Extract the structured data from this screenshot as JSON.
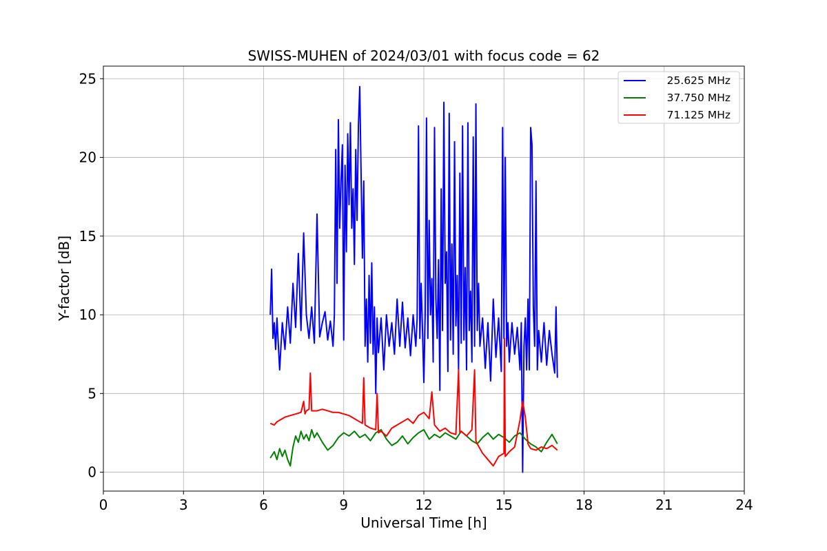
{
  "chart_data": {
    "type": "line",
    "title": "SWISS-MUHEN of 2024/03/01 with focus code = 62",
    "xlabel": "Universal Time [h]",
    "ylabel": "Y-factor [dB]",
    "xlim": [
      0,
      24
    ],
    "ylim": [
      -1.2,
      25.8
    ],
    "xticks": [
      0,
      3,
      6,
      9,
      12,
      15,
      18,
      21,
      24
    ],
    "yticks": [
      0,
      5,
      10,
      15,
      20,
      25
    ],
    "grid": true,
    "legend_position": "top-right",
    "series": [
      {
        "name": "25.625 MHz",
        "color": "#0000ff",
        "x": [
          6.25,
          6.3,
          6.35,
          6.4,
          6.45,
          6.5,
          6.6,
          6.7,
          6.8,
          6.9,
          7.0,
          7.1,
          7.2,
          7.3,
          7.4,
          7.5,
          7.6,
          7.7,
          7.8,
          7.9,
          8.0,
          8.1,
          8.2,
          8.3,
          8.4,
          8.5,
          8.6,
          8.65,
          8.7,
          8.75,
          8.8,
          8.85,
          8.9,
          8.95,
          9.0,
          9.05,
          9.1,
          9.15,
          9.2,
          9.25,
          9.3,
          9.35,
          9.4,
          9.45,
          9.5,
          9.55,
          9.6,
          9.65,
          9.7,
          9.75,
          9.8,
          9.85,
          9.9,
          9.95,
          10.0,
          10.05,
          10.1,
          10.15,
          10.2,
          10.25,
          10.3,
          10.4,
          10.5,
          10.6,
          10.7,
          10.8,
          10.9,
          11.0,
          11.1,
          11.2,
          11.3,
          11.4,
          11.5,
          11.6,
          11.7,
          11.75,
          11.8,
          11.85,
          11.9,
          11.95,
          12.0,
          12.05,
          12.1,
          12.15,
          12.2,
          12.25,
          12.3,
          12.35,
          12.4,
          12.45,
          12.5,
          12.55,
          12.6,
          12.65,
          12.7,
          12.75,
          12.8,
          12.85,
          12.9,
          12.95,
          13.0,
          13.05,
          13.1,
          13.15,
          13.2,
          13.25,
          13.3,
          13.35,
          13.4,
          13.45,
          13.5,
          13.55,
          13.6,
          13.65,
          13.7,
          13.75,
          13.8,
          13.85,
          13.9,
          13.95,
          14.0,
          14.05,
          14.1,
          14.2,
          14.3,
          14.4,
          14.5,
          14.6,
          14.7,
          14.8,
          14.9,
          14.95,
          15.0,
          15.05,
          15.1,
          15.15,
          15.2,
          15.3,
          15.4,
          15.5,
          15.6,
          15.65,
          15.7,
          15.75,
          15.8,
          15.85,
          15.9,
          15.95,
          16.0,
          16.05,
          16.1,
          16.15,
          16.2,
          16.25,
          16.3,
          16.4,
          16.5,
          16.6,
          16.7,
          16.8,
          16.9,
          16.95,
          17.0
        ],
        "y": [
          10.0,
          12.9,
          8.5,
          9.5,
          7.8,
          9.8,
          6.5,
          9.5,
          7.8,
          10.5,
          8.2,
          12.0,
          9.2,
          13.9,
          9.0,
          15.2,
          10.0,
          8.5,
          10.5,
          8.2,
          16.4,
          8.6,
          9.5,
          10.2,
          8.4,
          9.6,
          8.0,
          10.0,
          20.5,
          12.0,
          22.4,
          15.5,
          18.5,
          20.8,
          8.4,
          19.5,
          14.0,
          21.5,
          17.0,
          22.2,
          15.5,
          18.0,
          13.2,
          20.5,
          16.0,
          22.0,
          24.5,
          19.0,
          13.6,
          18.5,
          8.0,
          11.0,
          7.0,
          12.5,
          8.2,
          13.3,
          7.5,
          10.5,
          5.0,
          9.8,
          7.6,
          9.8,
          6.5,
          10.0,
          8.0,
          9.5,
          7.5,
          11.0,
          8.0,
          10.8,
          7.9,
          9.8,
          7.4,
          10.0,
          8.0,
          9.8,
          22.0,
          8.5,
          12.0,
          9.0,
          5.7,
          10.0,
          22.5,
          8.5,
          16.0,
          10.0,
          12.3,
          7.0,
          21.9,
          11.0,
          8.5,
          13.5,
          5.2,
          18.0,
          9.0,
          23.5,
          12.0,
          14.0,
          6.4,
          22.8,
          8.4,
          14.5,
          7.5,
          21.0,
          9.3,
          12.5,
          6.5,
          19.0,
          8.2,
          22.0,
          8.4,
          13.0,
          6.5,
          22.2,
          9.0,
          11.5,
          7.0,
          21.3,
          8.0,
          23.4,
          9.0,
          12.0,
          8.0,
          9.8,
          6.6,
          9.5,
          5.8,
          11.0,
          7.3,
          9.8,
          6.4,
          21.9,
          8.5,
          20.0,
          8.0,
          9.5,
          7.0,
          9.5,
          7.5,
          9.2,
          6.5,
          9.5,
          0.0,
          8.0,
          9.8,
          6.5,
          11.0,
          6.5,
          21.9,
          20.8,
          10.5,
          8.0,
          18.5,
          6.5,
          9.0,
          7.0,
          9.5,
          6.8,
          9.0,
          7.5,
          6.3,
          10.5,
          6.0
        ]
      },
      {
        "name": "37.750 MHz",
        "color": "#008000",
        "x": [
          6.25,
          6.4,
          6.5,
          6.6,
          6.7,
          6.8,
          6.9,
          7.0,
          7.1,
          7.2,
          7.3,
          7.4,
          7.5,
          7.6,
          7.7,
          7.8,
          7.9,
          8.0,
          8.2,
          8.4,
          8.6,
          8.8,
          9.0,
          9.2,
          9.4,
          9.6,
          9.8,
          10.0,
          10.2,
          10.4,
          10.6,
          10.8,
          11.0,
          11.2,
          11.4,
          11.6,
          11.8,
          12.0,
          12.2,
          12.4,
          12.6,
          12.8,
          13.0,
          13.2,
          13.4,
          13.6,
          13.8,
          14.0,
          14.2,
          14.4,
          14.6,
          14.8,
          15.0,
          15.2,
          15.4,
          15.6,
          15.8,
          16.0,
          16.2,
          16.4,
          16.6,
          16.8,
          17.0
        ],
        "y": [
          0.9,
          1.3,
          0.8,
          1.5,
          1.0,
          1.4,
          0.8,
          0.4,
          1.6,
          2.3,
          1.9,
          2.6,
          2.1,
          2.4,
          2.0,
          2.7,
          2.2,
          2.5,
          1.9,
          1.4,
          1.7,
          2.2,
          2.5,
          2.3,
          2.6,
          2.2,
          2.4,
          2.0,
          2.5,
          2.7,
          2.1,
          1.7,
          1.9,
          2.3,
          1.8,
          2.2,
          2.5,
          2.7,
          2.1,
          2.4,
          2.2,
          2.5,
          2.3,
          2.1,
          2.6,
          2.3,
          2.0,
          1.8,
          2.2,
          2.5,
          2.1,
          2.4,
          2.2,
          1.9,
          2.3,
          2.5,
          2.1,
          1.8,
          1.6,
          1.3,
          1.9,
          2.4,
          1.8
        ]
      },
      {
        "name": "71.125 MHz",
        "color": "#ff0000",
        "x": [
          6.25,
          6.4,
          6.5,
          6.6,
          6.8,
          7.0,
          7.2,
          7.4,
          7.5,
          7.55,
          7.6,
          7.7,
          7.75,
          7.8,
          8.0,
          8.2,
          8.4,
          8.6,
          8.8,
          9.0,
          9.2,
          9.4,
          9.6,
          9.7,
          9.75,
          9.8,
          10.0,
          10.2,
          10.25,
          10.3,
          10.4,
          10.6,
          10.8,
          11.0,
          11.2,
          11.4,
          11.6,
          11.8,
          12.0,
          12.2,
          12.3,
          12.4,
          12.6,
          12.8,
          13.0,
          13.2,
          13.3,
          13.35,
          13.4,
          13.6,
          13.8,
          13.9,
          13.95,
          14.0,
          14.2,
          14.4,
          14.6,
          14.8,
          15.0,
          15.02,
          15.05,
          15.2,
          15.4,
          15.6,
          15.7,
          15.8,
          15.9,
          16.0,
          16.2,
          16.4,
          16.6,
          16.8,
          17.0
        ],
        "y": [
          3.1,
          3.0,
          3.2,
          3.3,
          3.5,
          3.6,
          3.7,
          3.8,
          4.5,
          3.7,
          3.9,
          4.0,
          6.3,
          3.9,
          3.9,
          4.0,
          3.9,
          3.8,
          3.8,
          3.7,
          3.6,
          3.4,
          3.2,
          3.1,
          6.0,
          3.0,
          2.8,
          2.7,
          5.0,
          2.5,
          2.6,
          2.3,
          2.8,
          3.0,
          3.2,
          3.4,
          3.1,
          3.6,
          3.8,
          3.4,
          5.1,
          3.0,
          2.6,
          2.8,
          2.5,
          2.4,
          6.5,
          2.5,
          2.6,
          2.3,
          2.7,
          6.5,
          2.0,
          1.8,
          1.2,
          0.8,
          0.4,
          1.0,
          1.2,
          8.5,
          1.0,
          1.3,
          1.6,
          3.3,
          4.5,
          3.5,
          1.8,
          1.5,
          1.4,
          1.6,
          1.5,
          1.7,
          1.4
        ]
      }
    ]
  }
}
